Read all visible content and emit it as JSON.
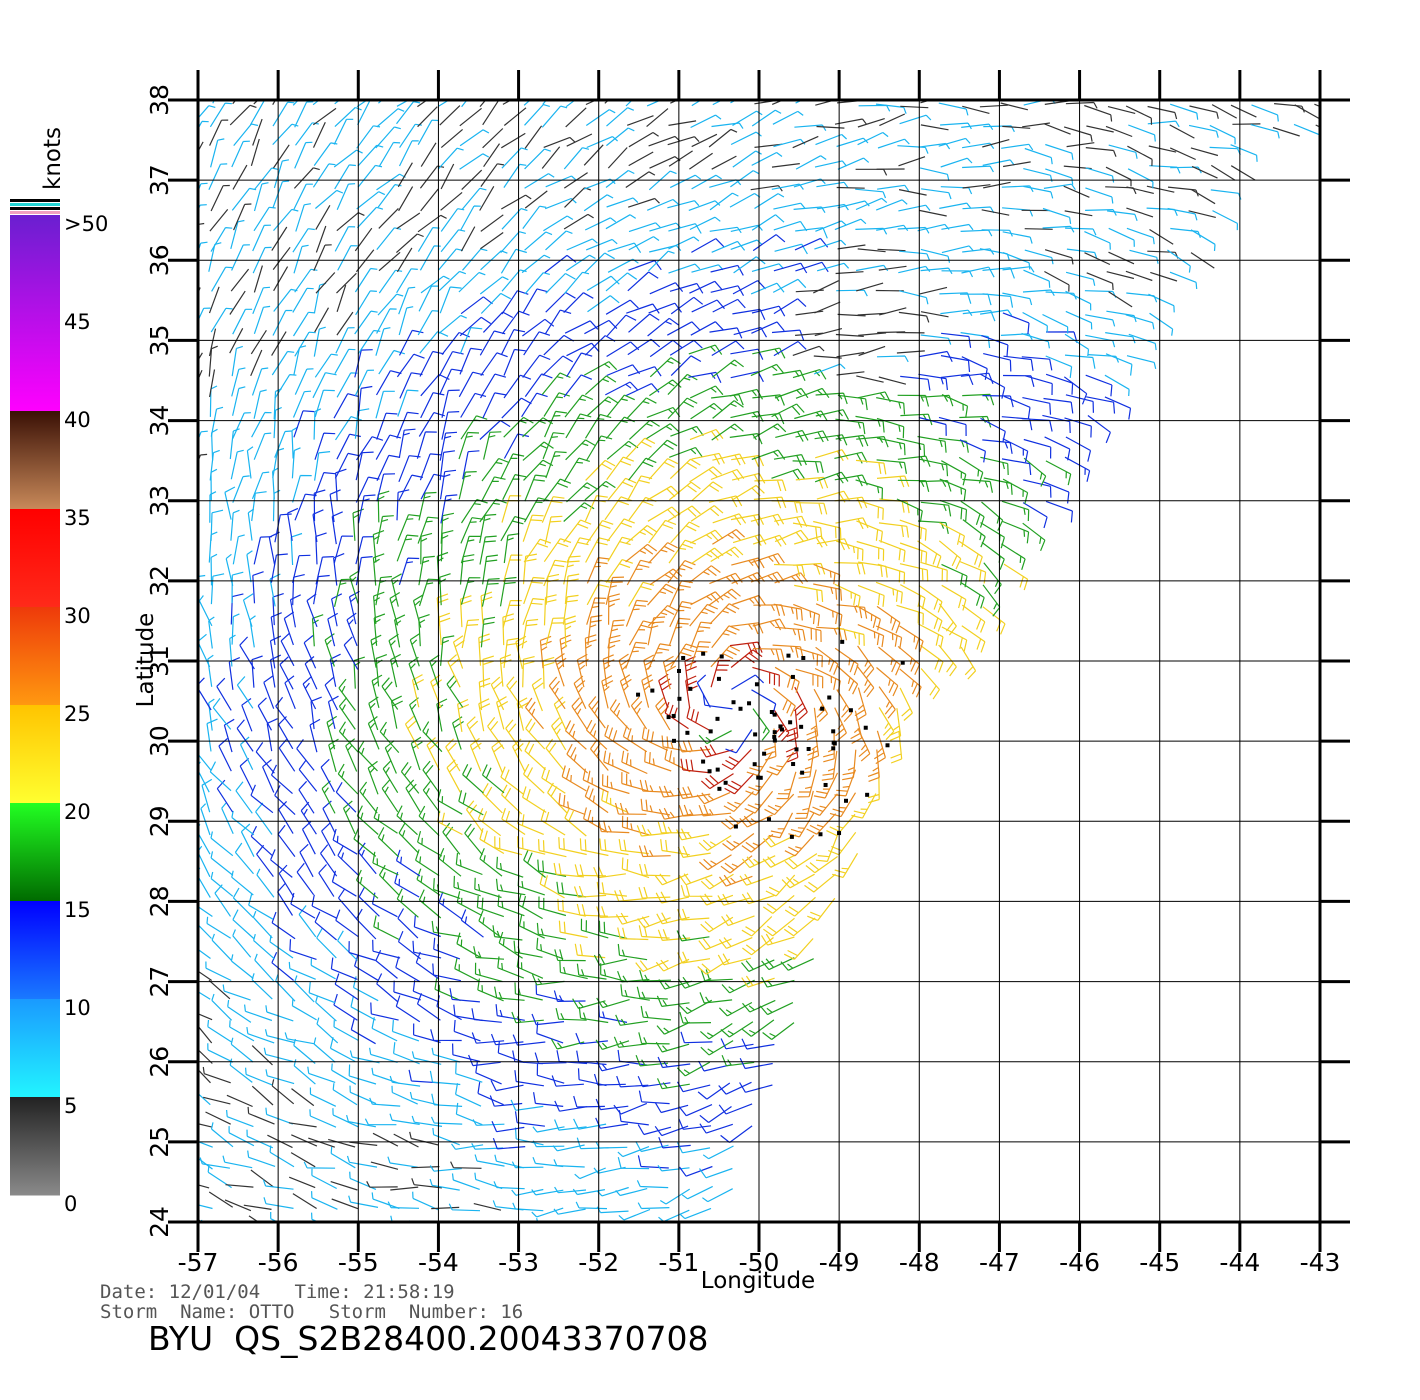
{
  "map": {
    "lon_range": [
      -57,
      -43
    ],
    "lat_range": [
      24,
      38
    ],
    "x_ticks": [
      "-57",
      "-56",
      "-55",
      "-54",
      "-53",
      "-52",
      "-51",
      "-50",
      "-49",
      "-48",
      "-47",
      "-46",
      "-45",
      "-44",
      "-43"
    ],
    "y_ticks": [
      "24",
      "25",
      "26",
      "27",
      "28",
      "29",
      "30",
      "31",
      "32",
      "33",
      "34",
      "35",
      "36",
      "37",
      "38"
    ],
    "xlabel": "Longitude",
    "ylabel": "Latitude",
    "grid": true,
    "storm_center": {
      "lon": -50.3,
      "lat": 30.4
    }
  },
  "colorbar": {
    "unit_label": "knots",
    "labels": [
      ">50",
      "45",
      "40",
      "35",
      "30",
      "25",
      "20",
      "15",
      "10",
      "5",
      "0"
    ],
    "stops": [
      {
        "from": 50,
        "to": 40,
        "top": "#6a1fd0",
        "bottom": "#ff00ff"
      },
      {
        "from": 40,
        "to": 35,
        "top": "#3a1005",
        "bottom": "#c98a5a"
      },
      {
        "from": 35,
        "to": 30,
        "top": "#ff0000",
        "bottom": "#ff2a1a"
      },
      {
        "from": 30,
        "to": 25,
        "top": "#ee3a0a",
        "bottom": "#ff9910"
      },
      {
        "from": 25,
        "to": 20,
        "top": "#ffc400",
        "bottom": "#ffff30"
      },
      {
        "from": 20,
        "to": 15,
        "top": "#22ff22",
        "bottom": "#006a00"
      },
      {
        "from": 15,
        "to": 10,
        "top": "#0000ff",
        "bottom": "#1a7aff"
      },
      {
        "from": 10,
        "to": 5,
        "top": "#1a9aff",
        "bottom": "#22f5ff"
      },
      {
        "from": 5,
        "to": 0,
        "top": "#222222",
        "bottom": "#8a8a8a"
      }
    ]
  },
  "footer": {
    "date_line": "Date: 12/01/04   Time: 21:58:19",
    "storm_line": "Storm  Name: OTTO   Storm  Number: 16",
    "file_id": "BYU  QS_S2B28400.20043370708"
  },
  "colors": {
    "calm": "#333333",
    "light": "#1ab4f0",
    "moderate": "#1030e0",
    "fresh": "#22a022",
    "strong": "#f2d020",
    "gale": "#e88a20",
    "storm": "#c02010",
    "rain_flag": "#000000"
  }
}
